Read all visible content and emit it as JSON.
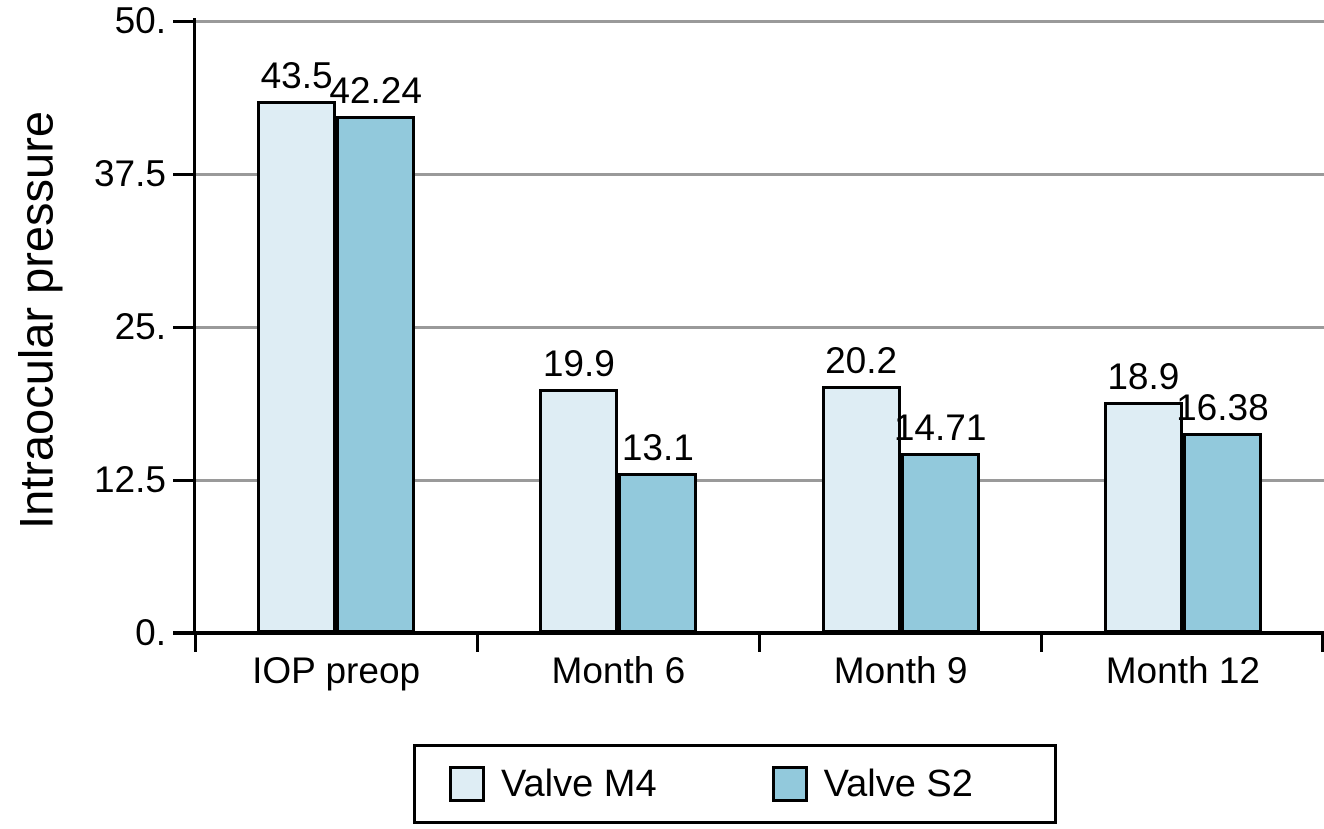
{
  "chart_data": {
    "type": "bar",
    "title": "",
    "ylabel": "Intraocular pressure",
    "xlabel": "",
    "categories": [
      "IOP preop",
      "Month 6",
      "Month 9",
      "Month 12"
    ],
    "series": [
      {
        "name": "Valve M4",
        "color": "#deedf4",
        "values": [
          43.5,
          19.9,
          20.2,
          18.9
        ],
        "labels": [
          "43.5",
          "19.9",
          "20.2",
          "18.9"
        ]
      },
      {
        "name": "Valve S2",
        "color": "#92c9dc",
        "values": [
          42.24,
          13.1,
          14.71,
          16.38
        ],
        "labels": [
          "42.24",
          "13.1",
          "14.71",
          "16.38"
        ]
      }
    ],
    "ylim": [
      0,
      50
    ],
    "y_ticks": [
      {
        "value": 0,
        "label": "0."
      },
      {
        "value": 12.5,
        "label": "12.5"
      },
      {
        "value": 25,
        "label": "25."
      },
      {
        "value": 37.5,
        "label": "37.5"
      },
      {
        "value": 50,
        "label": "50."
      }
    ],
    "grid": "horizontal gridlines at labeled ticks",
    "legend_position": "bottom",
    "colors": {
      "grid": "#9a9a9a",
      "axis": "#000000",
      "bar_border": "#000000",
      "text": "#000000",
      "background": "#ffffff"
    }
  }
}
